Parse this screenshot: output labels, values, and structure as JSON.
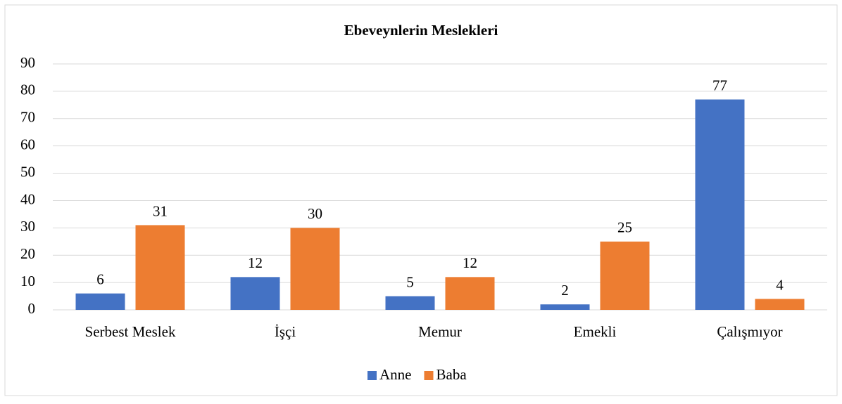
{
  "chart_data": {
    "type": "bar",
    "title": "Ebeveynlerin Meslekleri",
    "categories": [
      "Serbest Meslek",
      "İşçi",
      "Memur",
      "Emekli",
      "Çalışmıyor"
    ],
    "series": [
      {
        "name": "Anne",
        "color": "#4472c4",
        "values": [
          6,
          12,
          5,
          2,
          77
        ]
      },
      {
        "name": "Baba",
        "color": "#ed7d31",
        "values": [
          31,
          30,
          12,
          25,
          4
        ]
      }
    ],
    "ylim": [
      0,
      90
    ],
    "yticks": [
      0,
      10,
      20,
      30,
      40,
      50,
      60,
      70,
      80,
      90
    ],
    "grid": true,
    "legend": "bottom"
  }
}
